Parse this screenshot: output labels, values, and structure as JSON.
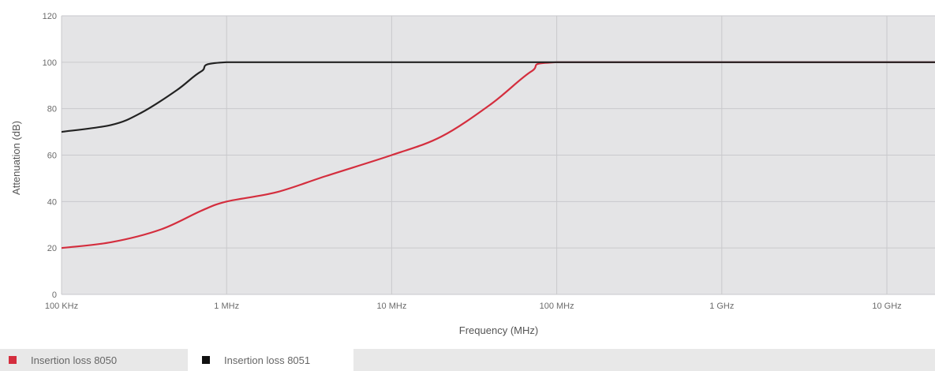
{
  "chart_data": {
    "type": "line",
    "xscale": "log",
    "xlabel": "Frequency (MHz)",
    "ylabel": "Attenuation (dB)",
    "ylim": [
      0,
      120
    ],
    "yticks": [
      0,
      20,
      40,
      60,
      80,
      100,
      120
    ],
    "xticks": [
      {
        "value": 0.1,
        "label": "100 KHz"
      },
      {
        "value": 1,
        "label": "1 MHz"
      },
      {
        "value": 10,
        "label": "10 MHz"
      },
      {
        "value": 100,
        "label": "100 MHz"
      },
      {
        "value": 1000,
        "label": "1 GHz"
      },
      {
        "value": 10000,
        "label": "10 GHz"
      }
    ],
    "grid": true,
    "legend_position": "bottom-left",
    "series": [
      {
        "name": "Insertion loss 8050",
        "color": "#d42e3e",
        "x": [
          0.1,
          0.2,
          0.4,
          0.7,
          1,
          2,
          4,
          10,
          20,
          40,
          70,
          100,
          1000,
          10000,
          20000
        ],
        "y": [
          20,
          22.5,
          28,
          36,
          40,
          44,
          51,
          60,
          68,
          82,
          96,
          100,
          100,
          100,
          100
        ]
      },
      {
        "name": "Insertion loss 8051",
        "color": "#222222",
        "x": [
          0.1,
          0.2,
          0.3,
          0.5,
          0.7,
          1,
          10,
          100,
          1000,
          10000,
          20000
        ],
        "y": [
          70,
          73,
          78,
          88,
          96,
          100,
          100,
          100,
          100,
          100,
          100
        ]
      }
    ]
  }
}
